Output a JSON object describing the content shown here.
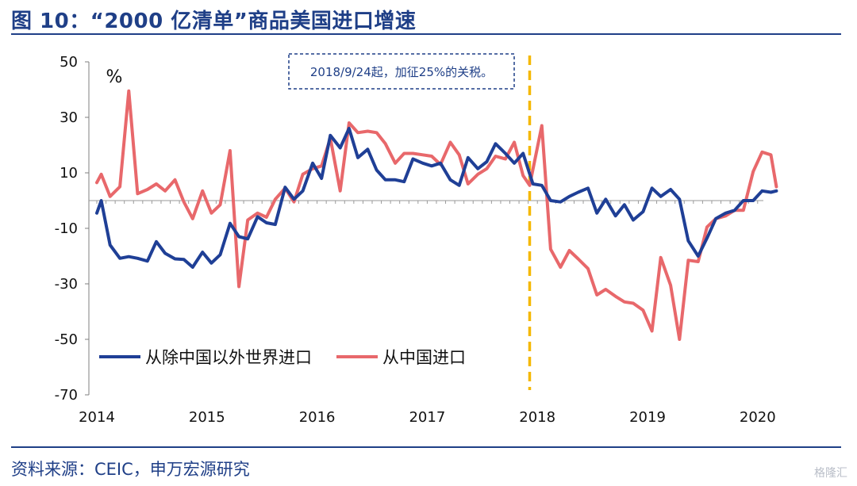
{
  "page": {
    "title": "图 10：“2000 亿清单”商品美国进口增速",
    "source": "资料来源：CEIC，申万宏源研究",
    "watermark": "格隆汇"
  },
  "chart_data": {
    "type": "line",
    "title": "图 10：“2000 亿清单”商品美国进口增速",
    "unit_label": "%",
    "ylim": [
      -70,
      50
    ],
    "yticks": [
      50,
      30,
      10,
      -10,
      -30,
      -50,
      -70
    ],
    "xlim": [
      2014.0,
      2020.3
    ],
    "xticks": [
      2014,
      2015,
      2016,
      2017,
      2018,
      2019,
      2020
    ],
    "xtick_labels": [
      "2014",
      "2015",
      "2016",
      "2017",
      "2018",
      "2019",
      "2020"
    ],
    "grid": false,
    "legend_position": "lower-left",
    "annotation": {
      "text": "2018/9/24起，加征25%的关税。",
      "x": 2017.93
    },
    "series": [
      {
        "name": "从除中国以外世界进口",
        "color": "#1f3f96",
        "points": [
          [
            2014.0,
            -4.5
          ],
          [
            2014.04,
            0.0
          ],
          [
            2014.12,
            -16.0
          ],
          [
            2014.21,
            -20.8
          ],
          [
            2014.29,
            -20.2
          ],
          [
            2014.37,
            -20.8
          ],
          [
            2014.46,
            -21.8
          ],
          [
            2014.54,
            -14.8
          ],
          [
            2014.62,
            -19.0
          ],
          [
            2014.71,
            -21.0
          ],
          [
            2014.79,
            -21.2
          ],
          [
            2014.87,
            -24.0
          ],
          [
            2014.96,
            -18.6
          ],
          [
            2015.04,
            -22.5
          ],
          [
            2015.12,
            -19.5
          ],
          [
            2015.21,
            -8.2
          ],
          [
            2015.29,
            -13.0
          ],
          [
            2015.37,
            -13.8
          ],
          [
            2015.46,
            -5.8
          ],
          [
            2015.54,
            -8.0
          ],
          [
            2015.62,
            -8.6
          ],
          [
            2015.71,
            4.8
          ],
          [
            2015.79,
            0.5
          ],
          [
            2015.87,
            3.5
          ],
          [
            2015.96,
            13.5
          ],
          [
            2016.04,
            8.0
          ],
          [
            2016.12,
            23.5
          ],
          [
            2016.21,
            19.0
          ],
          [
            2016.29,
            26.0
          ],
          [
            2016.37,
            15.5
          ],
          [
            2016.46,
            18.5
          ],
          [
            2016.54,
            11.0
          ],
          [
            2016.62,
            7.5
          ],
          [
            2016.71,
            7.5
          ],
          [
            2016.79,
            6.8
          ],
          [
            2016.87,
            15.0
          ],
          [
            2016.96,
            13.5
          ],
          [
            2017.04,
            12.5
          ],
          [
            2017.12,
            13.5
          ],
          [
            2017.21,
            7.5
          ],
          [
            2017.29,
            5.5
          ],
          [
            2017.37,
            15.5
          ],
          [
            2017.46,
            11.5
          ],
          [
            2017.54,
            14.0
          ],
          [
            2017.62,
            20.5
          ],
          [
            2017.71,
            17.0
          ],
          [
            2017.79,
            13.5
          ],
          [
            2017.87,
            17.0
          ],
          [
            2017.96,
            6.0
          ],
          [
            2018.04,
            5.5
          ],
          [
            2018.12,
            0.0
          ],
          [
            2018.21,
            -0.5
          ],
          [
            2018.29,
            1.5
          ],
          [
            2018.37,
            3.0
          ],
          [
            2018.46,
            4.5
          ],
          [
            2018.54,
            -4.5
          ],
          [
            2018.62,
            0.5
          ],
          [
            2018.71,
            -5.5
          ],
          [
            2018.79,
            -1.5
          ],
          [
            2018.87,
            -7.0
          ],
          [
            2018.96,
            -4.0
          ],
          [
            2019.04,
            4.5
          ],
          [
            2019.12,
            1.5
          ],
          [
            2019.21,
            4.0
          ],
          [
            2019.29,
            0.5
          ],
          [
            2019.37,
            -14.5
          ],
          [
            2019.46,
            -20.0
          ],
          [
            2019.54,
            -13.5
          ],
          [
            2019.62,
            -6.5
          ],
          [
            2019.71,
            -4.5
          ],
          [
            2019.79,
            -3.5
          ],
          [
            2019.87,
            0.0
          ],
          [
            2019.96,
            0.0
          ],
          [
            2020.04,
            3.5
          ],
          [
            2020.12,
            3.0
          ],
          [
            2020.17,
            3.5
          ]
        ]
      },
      {
        "name": "从中国进口",
        "color": "#e8686b",
        "points": [
          [
            2014.0,
            6.5
          ],
          [
            2014.04,
            9.5
          ],
          [
            2014.12,
            1.5
          ],
          [
            2014.21,
            5.0
          ],
          [
            2014.29,
            39.5
          ],
          [
            2014.37,
            2.5
          ],
          [
            2014.46,
            4.0
          ],
          [
            2014.54,
            6.0
          ],
          [
            2014.62,
            3.5
          ],
          [
            2014.71,
            7.5
          ],
          [
            2014.79,
            -0.5
          ],
          [
            2014.87,
            -6.5
          ],
          [
            2014.96,
            3.5
          ],
          [
            2015.04,
            -4.5
          ],
          [
            2015.12,
            -1.5
          ],
          [
            2015.21,
            18.0
          ],
          [
            2015.29,
            -31.0
          ],
          [
            2015.37,
            -7.0
          ],
          [
            2015.46,
            -4.5
          ],
          [
            2015.54,
            -6.0
          ],
          [
            2015.62,
            0.5
          ],
          [
            2015.71,
            4.5
          ],
          [
            2015.79,
            -0.5
          ],
          [
            2015.87,
            9.5
          ],
          [
            2015.96,
            11.5
          ],
          [
            2016.04,
            12.5
          ],
          [
            2016.12,
            22.5
          ],
          [
            2016.21,
            3.5
          ],
          [
            2016.29,
            28.0
          ],
          [
            2016.37,
            24.5
          ],
          [
            2016.46,
            25.0
          ],
          [
            2016.54,
            24.5
          ],
          [
            2016.62,
            20.5
          ],
          [
            2016.71,
            13.5
          ],
          [
            2016.79,
            17.0
          ],
          [
            2016.87,
            17.0
          ],
          [
            2016.96,
            16.5
          ],
          [
            2017.04,
            16.0
          ],
          [
            2017.12,
            13.0
          ],
          [
            2017.21,
            21.0
          ],
          [
            2017.29,
            16.5
          ],
          [
            2017.37,
            6.0
          ],
          [
            2017.46,
            9.5
          ],
          [
            2017.54,
            11.5
          ],
          [
            2017.62,
            16.0
          ],
          [
            2017.71,
            15.0
          ],
          [
            2017.79,
            21.0
          ],
          [
            2017.87,
            9.0
          ],
          [
            2017.93,
            5.5
          ],
          [
            2018.04,
            27.0
          ],
          [
            2018.12,
            -17.5
          ],
          [
            2018.21,
            -24.0
          ],
          [
            2018.29,
            -18.0
          ],
          [
            2018.37,
            -21.0
          ],
          [
            2018.46,
            -24.5
          ],
          [
            2018.54,
            -34.0
          ],
          [
            2018.62,
            -32.0
          ],
          [
            2018.71,
            -34.5
          ],
          [
            2018.79,
            -36.5
          ],
          [
            2018.87,
            -37.0
          ],
          [
            2018.96,
            -39.5
          ],
          [
            2019.04,
            -47.0
          ],
          [
            2019.12,
            -20.5
          ],
          [
            2019.21,
            -30.5
          ],
          [
            2019.29,
            -50.0
          ],
          [
            2019.37,
            -21.5
          ],
          [
            2019.46,
            -22.0
          ],
          [
            2019.54,
            -9.5
          ],
          [
            2019.62,
            -6.5
          ],
          [
            2019.71,
            -5.5
          ],
          [
            2019.79,
            -3.5
          ],
          [
            2019.87,
            -3.5
          ],
          [
            2019.96,
            10.5
          ],
          [
            2020.04,
            17.5
          ],
          [
            2020.12,
            16.5
          ],
          [
            2020.17,
            5.0
          ]
        ]
      }
    ]
  }
}
